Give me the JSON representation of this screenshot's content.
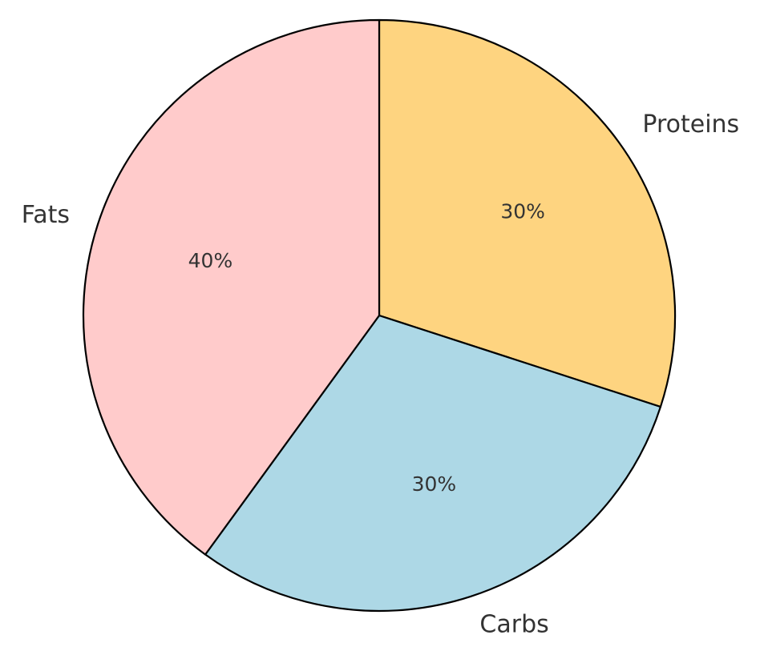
{
  "chart_data": {
    "type": "pie",
    "categories": [
      "Proteins",
      "Carbs",
      "Fats"
    ],
    "values": [
      30,
      30,
      40
    ],
    "value_labels": [
      "30%",
      "30%",
      "40%"
    ],
    "colors": [
      "#fed480",
      "#add8e6",
      "#ffcbcb"
    ],
    "start_angle_deg": 90,
    "direction": "clockwise",
    "legend": "none"
  }
}
